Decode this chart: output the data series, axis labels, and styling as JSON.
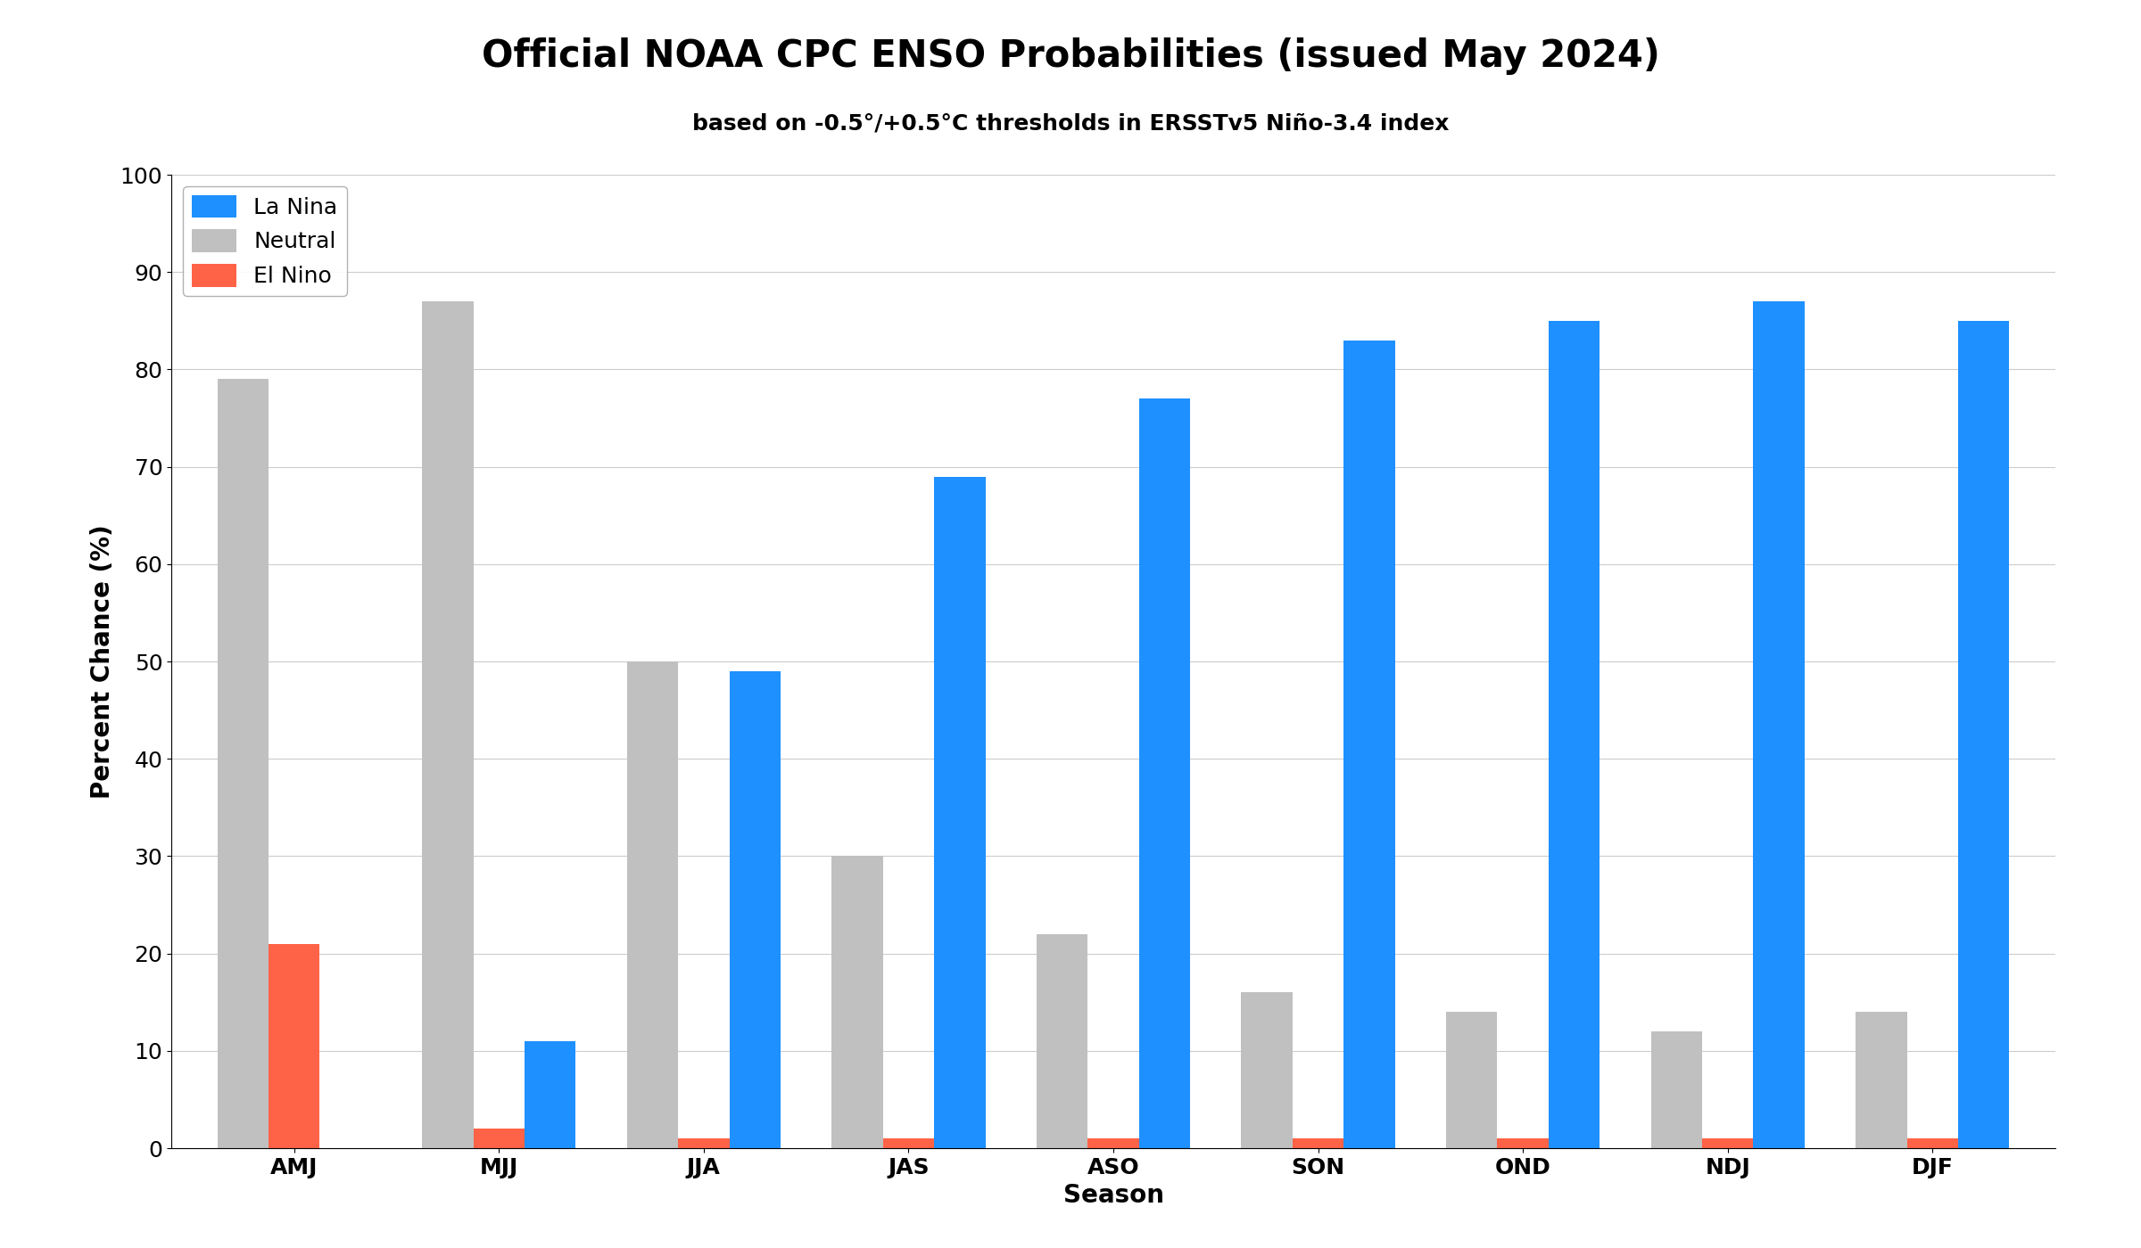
{
  "title": "Official NOAA CPC ENSO Probabilities (issued May 2024)",
  "subtitle": "based on -0.5°/+0.5°C thresholds in ERSSTv5 Niño-3.4 index",
  "xlabel": "Season",
  "ylabel": "Percent Chance (%)",
  "ylim": [
    0,
    100
  ],
  "yticks": [
    0,
    10,
    20,
    30,
    40,
    50,
    60,
    70,
    80,
    90,
    100
  ],
  "seasons": [
    "AMJ",
    "MJJ",
    "JJA",
    "JAS",
    "ASO",
    "SON",
    "OND",
    "NDJ",
    "DJF"
  ],
  "la_nina": [
    0,
    11,
    49,
    69,
    77,
    83,
    85,
    87,
    85
  ],
  "neutral": [
    79,
    87,
    50,
    30,
    22,
    16,
    14,
    12,
    14
  ],
  "el_nino": [
    21,
    2,
    1,
    1,
    1,
    1,
    1,
    1,
    1
  ],
  "color_la_nina": "#1E90FF",
  "color_neutral": "#C0C0C0",
  "color_el_nino": "#FF6347",
  "legend_labels": [
    "La Nina",
    "Neutral",
    "El Nino"
  ],
  "bar_width": 0.25,
  "title_fontsize": 30,
  "subtitle_fontsize": 18,
  "label_fontsize": 20,
  "tick_fontsize": 18,
  "legend_fontsize": 18,
  "background_color": "#FFFFFF",
  "grid_color": "#CCCCCC"
}
